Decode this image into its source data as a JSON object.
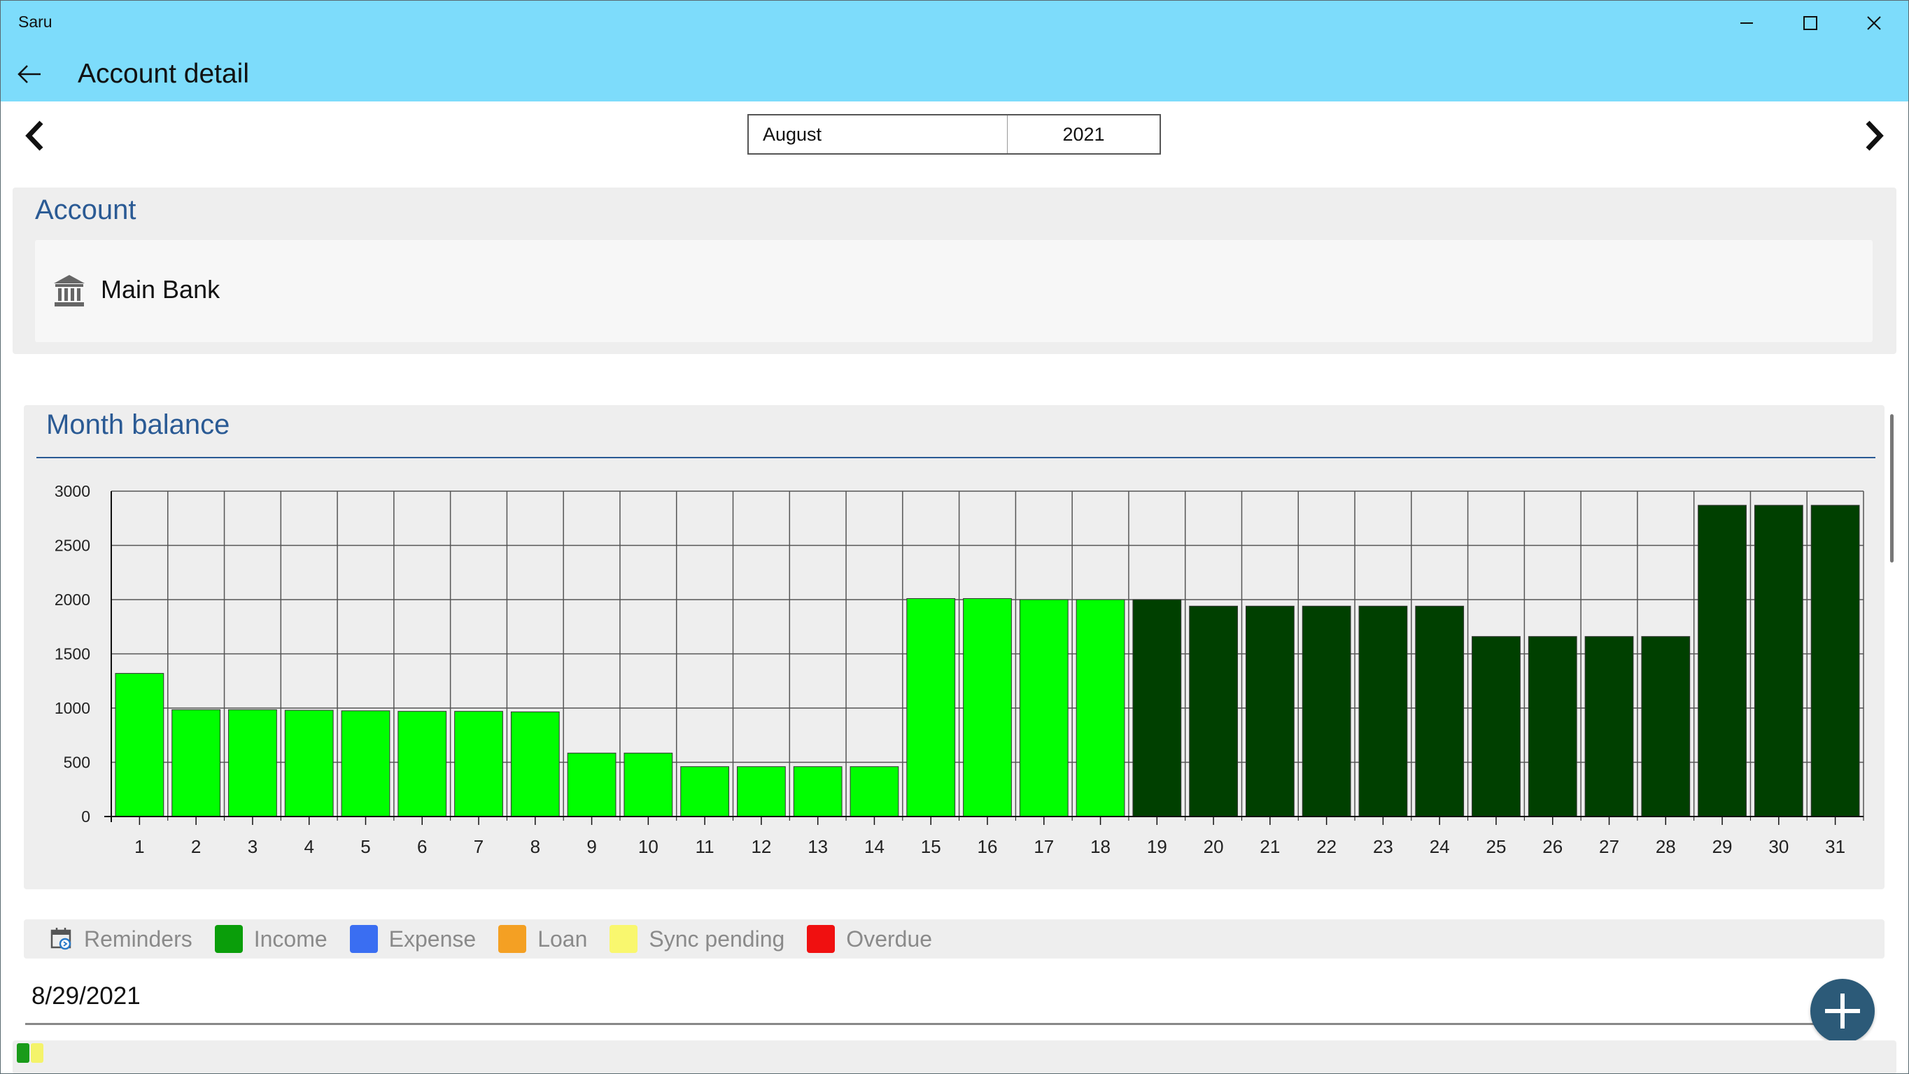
{
  "window": {
    "title": "Saru"
  },
  "header": {
    "title": "Account detail"
  },
  "period": {
    "month": "August",
    "year": "2021"
  },
  "account": {
    "section_title": "Account",
    "name": "Main Bank"
  },
  "chart_section": {
    "title": "Month balance"
  },
  "colors": {
    "projected": "#00ff00",
    "actual": "#004000",
    "accent": "#2a5a94",
    "titlebar": "#7ddcfb"
  },
  "chart_data": {
    "type": "bar",
    "categories": [
      "1",
      "2",
      "3",
      "4",
      "5",
      "6",
      "7",
      "8",
      "9",
      "10",
      "11",
      "12",
      "13",
      "14",
      "15",
      "16",
      "17",
      "18",
      "19",
      "20",
      "21",
      "22",
      "23",
      "24",
      "25",
      "26",
      "27",
      "28",
      "29",
      "30",
      "31"
    ],
    "values": [
      1320,
      985,
      985,
      980,
      975,
      970,
      970,
      965,
      585,
      585,
      460,
      460,
      460,
      460,
      2010,
      2010,
      2000,
      2000,
      2000,
      1940,
      1940,
      1940,
      1940,
      1940,
      1660,
      1660,
      1660,
      1660,
      2870,
      2870,
      2870
    ],
    "ylim": [
      0,
      3000
    ],
    "yticks": [
      "0",
      "500",
      "1000",
      "1500",
      "2000",
      "2500",
      "3000"
    ],
    "grid": true,
    "title": "",
    "xlabel": "",
    "ylabel": ""
  },
  "legend": {
    "items": [
      {
        "label": "Reminders",
        "icon": "calendar-sync-icon"
      },
      {
        "label": "Income",
        "color": "#0a9e0a"
      },
      {
        "label": "Expense",
        "color": "#3a6ef2"
      },
      {
        "label": "Loan",
        "color": "#f4a023"
      },
      {
        "label": "Sync pending",
        "color": "#f9f76e"
      },
      {
        "label": "Overdue",
        "color": "#f01010"
      }
    ]
  },
  "entries": {
    "date": "8/29/2021"
  }
}
